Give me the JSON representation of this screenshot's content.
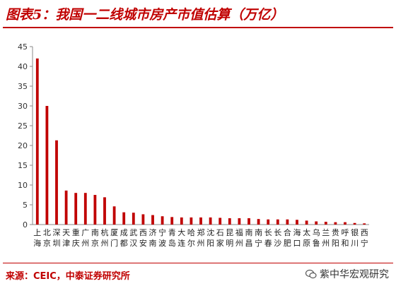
{
  "header": {
    "title": "图表5：我国一二线城市房产市值估算（万亿）"
  },
  "footer": {
    "source": "来源：CEIC，中泰证券研究所",
    "watermark": "紫中华宏观研究"
  },
  "colors": {
    "bar": "#c00000",
    "title": "#c00000",
    "axis": "#888888"
  },
  "chart_data": {
    "type": "bar",
    "title": "",
    "xlabel": "",
    "ylabel": "",
    "ylim": [
      0,
      45
    ],
    "yticks": [
      0,
      5,
      10,
      15,
      20,
      25,
      30,
      35,
      40,
      45
    ],
    "grid": false,
    "categories": [
      "上海",
      "北京",
      "深圳",
      "天津",
      "重庆",
      "广州",
      "南京",
      "杭州",
      "厦门",
      "成都",
      "武汉",
      "西安",
      "济南",
      "宁波",
      "青岛",
      "大连",
      "哈尔滨",
      "郑州",
      "沈阳",
      "石家庄",
      "昆明",
      "福州",
      "南昌",
      "南宁",
      "长春",
      "长沙",
      "合肥",
      "海口",
      "太原",
      "乌鲁木齐",
      "兰州",
      "贵阳",
      "呼和浩特",
      "银川",
      "西宁"
    ],
    "labels_top": [
      "上",
      "北",
      "深",
      "天",
      "重",
      "广",
      "南",
      "杭",
      "厦",
      "成",
      "武",
      "西",
      "济",
      "宁",
      "青",
      "大",
      "哈",
      "郑",
      "沈",
      "石",
      "昆",
      "福",
      "南",
      "南",
      "长",
      "长",
      "合",
      "海",
      "太",
      "乌",
      "兰",
      "贵",
      "呼",
      "银",
      "西"
    ],
    "labels_bottom": [
      "海",
      "京",
      "圳",
      "津",
      "庆",
      "州",
      "京",
      "州",
      "门",
      "都",
      "汉",
      "安",
      "南",
      "波",
      "岛",
      "连",
      "尔",
      "州",
      "阳",
      "家",
      "明",
      "州",
      "昌",
      "宁",
      "春",
      "沙",
      "肥",
      "口",
      "原",
      "鲁",
      "州",
      "阳",
      "和",
      "川",
      "宁"
    ],
    "values": [
      42,
      30,
      21.3,
      8.6,
      8.0,
      8.0,
      7.5,
      6.9,
      4.6,
      3.1,
      3.0,
      2.6,
      2.4,
      2.1,
      1.9,
      1.8,
      1.8,
      1.8,
      1.8,
      1.7,
      1.6,
      1.6,
      1.6,
      1.4,
      1.3,
      1.3,
      1.3,
      1.2,
      1.0,
      0.8,
      0.7,
      0.6,
      0.6,
      0.4,
      0.3
    ]
  }
}
